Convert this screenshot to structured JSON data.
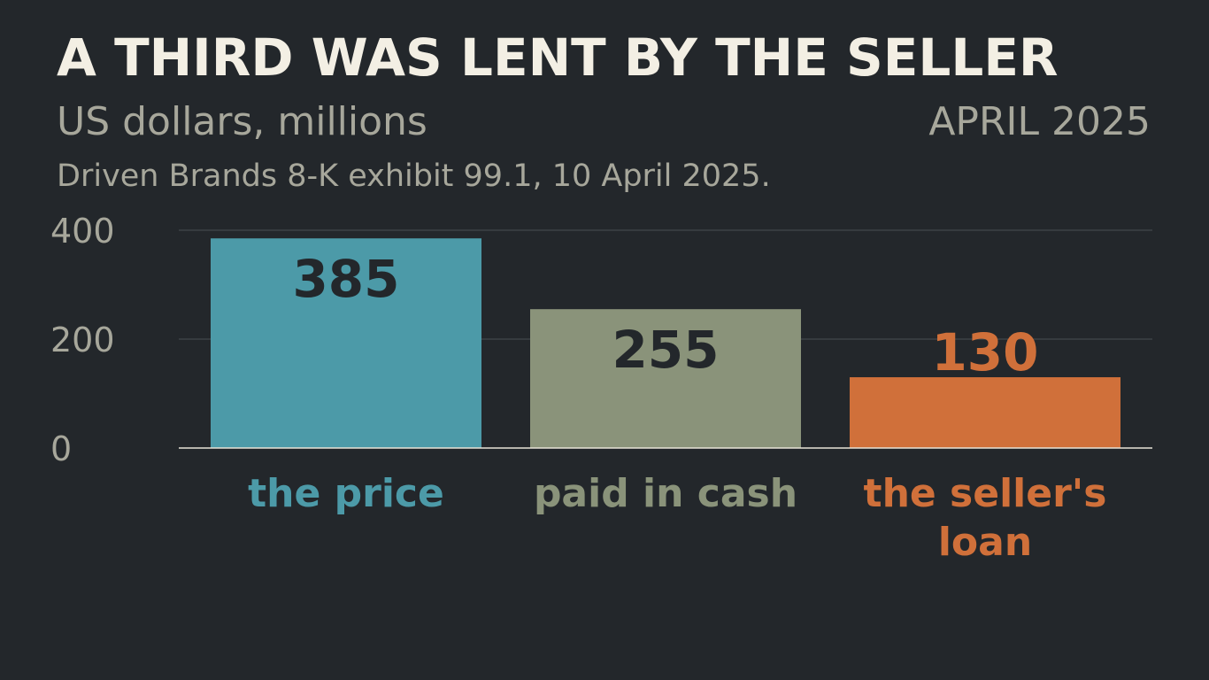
{
  "header": {
    "title": "A THIRD WAS LENT BY THE SELLER",
    "subtitle": "US dollars, millions",
    "date": "APRIL 2025",
    "source": "Driven Brands 8-K exhibit 99.1, 10 April 2025."
  },
  "colors": {
    "background": "#23272b",
    "gridline": "#4a4f53",
    "baseline": "#e8e4d8",
    "tick_label": "#a7a79b",
    "inside_label": "#23272b"
  },
  "chart_data": {
    "type": "bar",
    "categories": [
      "the price",
      "paid in cash",
      "the seller's loan"
    ],
    "category_lines": [
      [
        "the price"
      ],
      [
        "paid in cash"
      ],
      [
        "the seller's",
        "loan"
      ]
    ],
    "values": [
      385,
      255,
      130
    ],
    "value_labels": [
      "385",
      "255",
      "130"
    ],
    "bar_colors": [
      "#4c9aa8",
      "#8a937a",
      "#d0703a"
    ],
    "ylim": [
      0,
      400
    ],
    "yticks": [
      0,
      200,
      400
    ],
    "ytick_labels": [
      "0",
      "200",
      "400"
    ],
    "grid": true,
    "legend": "none"
  }
}
